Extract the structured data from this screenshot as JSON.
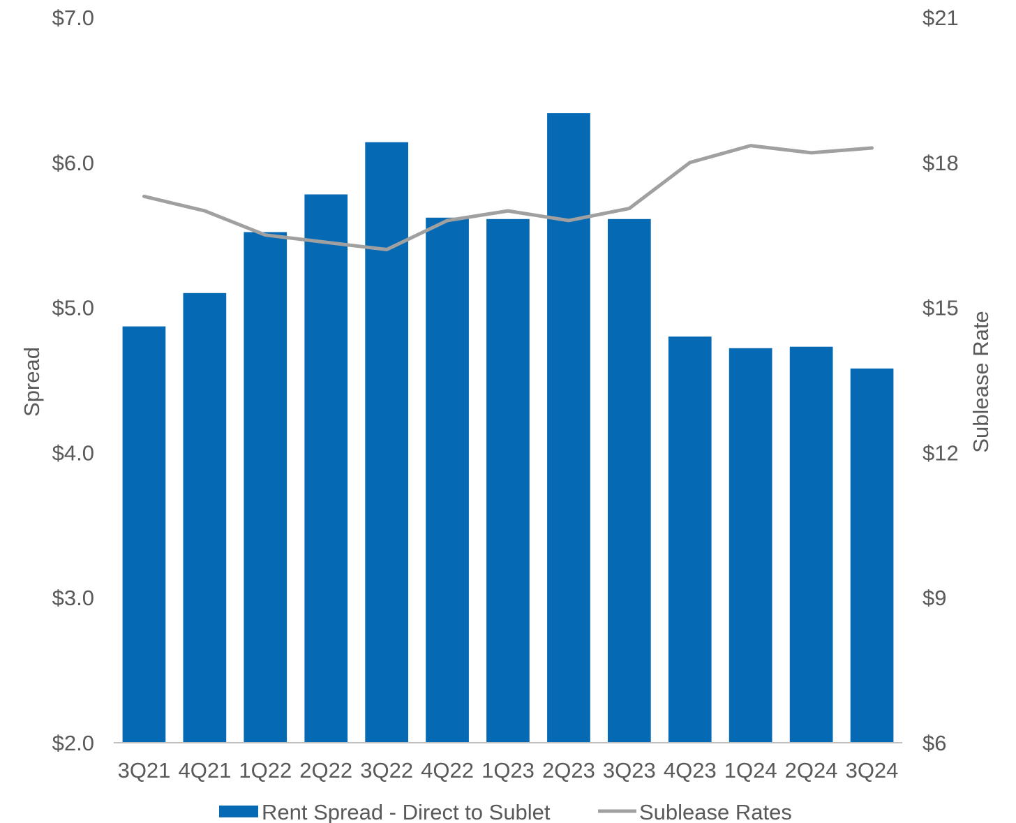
{
  "chart_data": {
    "type": "bar",
    "categories": [
      "3Q21",
      "4Q21",
      "1Q22",
      "2Q22",
      "3Q22",
      "4Q22",
      "1Q23",
      "2Q23",
      "3Q23",
      "4Q23",
      "1Q24",
      "2Q24",
      "3Q24"
    ],
    "series": [
      {
        "name": "Rent Spread - Direct to Sublet",
        "type": "bar",
        "axis": "left",
        "color": "#0569b4",
        "values": [
          4.87,
          5.1,
          5.52,
          5.78,
          6.14,
          5.62,
          5.61,
          6.34,
          5.61,
          4.8,
          4.72,
          4.73,
          4.58
        ]
      },
      {
        "name": "Sublease Rates",
        "type": "line",
        "axis": "right",
        "color": "#a0a0a0",
        "values": [
          17.3,
          17.0,
          16.5,
          16.35,
          16.2,
          16.8,
          17.0,
          16.8,
          17.05,
          18.0,
          18.35,
          18.2,
          18.3
        ]
      }
    ],
    "y_left": {
      "label": "Spread",
      "range": [
        2,
        7
      ],
      "ticks": [
        2,
        3,
        4,
        5,
        6,
        7
      ],
      "tick_labels": [
        "$2.0",
        "$3.0",
        "$4.0",
        "$5.0",
        "$6.0",
        "$7.0"
      ]
    },
    "y_right": {
      "label": "Sublease Rate",
      "range": [
        6,
        21
      ],
      "ticks": [
        6,
        9,
        12,
        15,
        18,
        21
      ],
      "tick_labels": [
        "$6",
        "$9",
        "$12",
        "$15",
        "$18",
        "$21"
      ]
    },
    "grid": false,
    "legend_position": "bottom"
  }
}
